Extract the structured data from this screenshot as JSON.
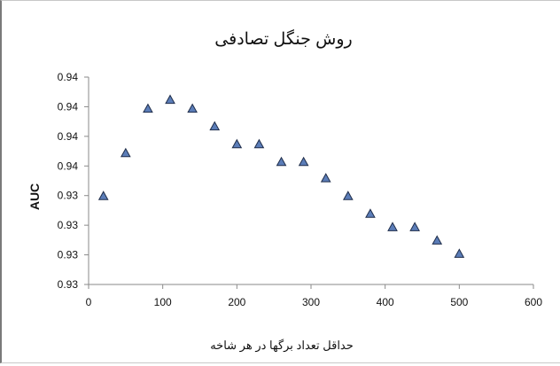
{
  "chart_data": {
    "type": "scatter",
    "title": "روش جنگل تصادفی",
    "xlabel": "حداقل تعداد برگها در هر شاخه",
    "ylabel": "AUC",
    "xlim": [
      0,
      600
    ],
    "ylim": [
      0.9275,
      0.9415
    ],
    "x_ticks": [
      0,
      100,
      200,
      300,
      400,
      500,
      600
    ],
    "y_ticks": [
      0.9275,
      0.9295,
      0.9315,
      0.9335,
      0.9355,
      0.9375,
      0.9395,
      0.9415
    ],
    "y_tick_labels": [
      "0.93",
      "0.93",
      "0.93",
      "0.93",
      "0.94",
      "0.94",
      "0.94",
      "0.94"
    ],
    "x": [
      20,
      50,
      80,
      110,
      140,
      170,
      200,
      230,
      260,
      290,
      320,
      350,
      380,
      410,
      440,
      470,
      500
    ],
    "y": [
      0.9335,
      0.9364,
      0.9394,
      0.94,
      0.9394,
      0.9382,
      0.937,
      0.937,
      0.9358,
      0.9358,
      0.9347,
      0.9335,
      0.9323,
      0.9314,
      0.9314,
      0.9305,
      0.9296
    ],
    "marker": "triangle",
    "marker_color": "#5b7db8",
    "marker_edge": "#1f2d4a",
    "grid": false,
    "legend": "none"
  }
}
